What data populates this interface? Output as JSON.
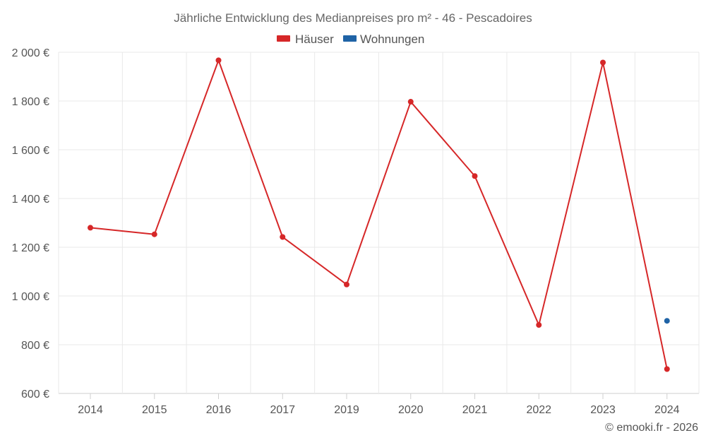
{
  "chart_data": {
    "type": "line",
    "title": "Jährliche Entwicklung des Medianpreises pro m² - 46 - Pescadoires",
    "categories": [
      "2014",
      "2015",
      "2016",
      "2017",
      "2019",
      "2020",
      "2021",
      "2022",
      "2023",
      "2024"
    ],
    "series": [
      {
        "name": "Häuser",
        "color": "#d62728",
        "values": [
          1280,
          1253,
          1967,
          1242,
          1047,
          1797,
          1492,
          881,
          1958,
          700
        ]
      },
      {
        "name": "Wohnungen",
        "color": "#1f63a6",
        "values": [
          null,
          null,
          null,
          null,
          null,
          null,
          null,
          null,
          null,
          898
        ]
      }
    ],
    "ylim": [
      600,
      2000
    ],
    "yticks": [
      600,
      800,
      1000,
      1200,
      1400,
      1600,
      1800,
      2000
    ],
    "ytick_labels": [
      "600 €",
      "800 €",
      "1 000 €",
      "1 200 €",
      "1 400 €",
      "1 600 €",
      "1 800 €",
      "2 000 €"
    ],
    "xlabel": "",
    "ylabel": "",
    "legend": "top-center",
    "grid": true
  },
  "credit": "© emooki.fr - 2026"
}
